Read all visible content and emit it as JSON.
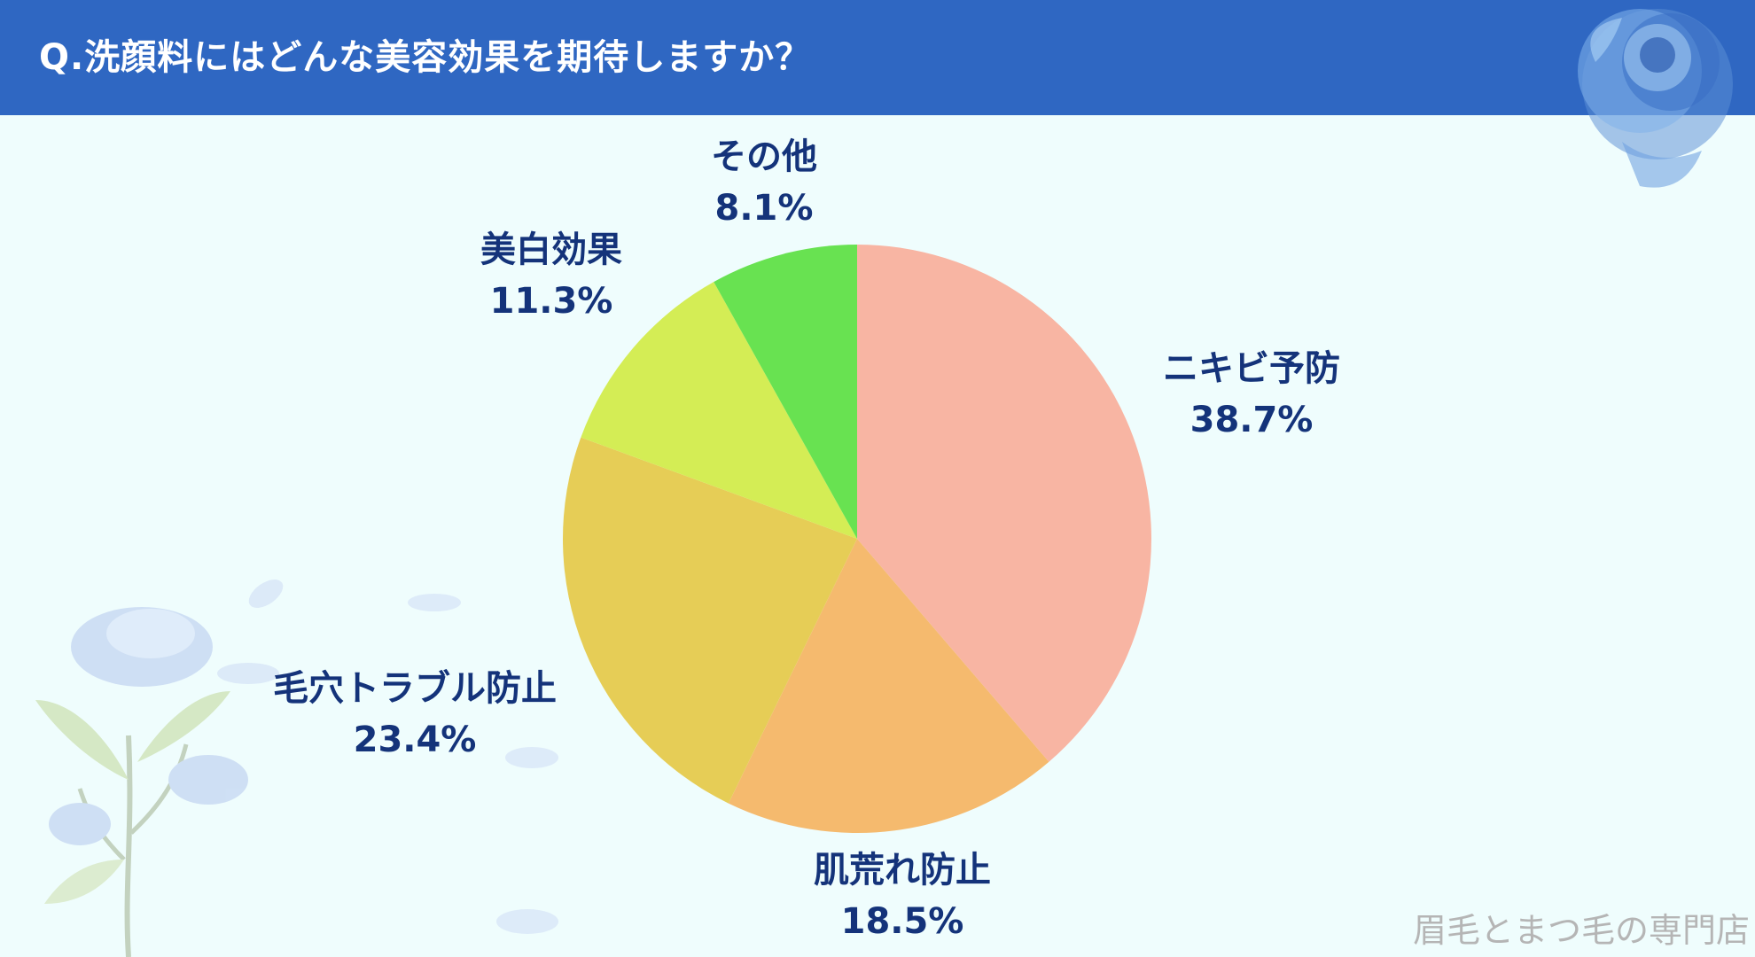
{
  "header": {
    "title": "Q.洗顔料にはどんな美容効果を期待しますか？",
    "background": "#2f67c2"
  },
  "watermark": "眉毛とまつ毛の専門店",
  "chart_data": {
    "type": "pie",
    "title": "Q.洗顔料にはどんな美容効果を期待しますか？",
    "start": "12 o'clock, clockwise",
    "slices": [
      {
        "label": "ニキビ予防",
        "value": 38.7,
        "display": "38.7%",
        "color": "#f8b5a3"
      },
      {
        "label": "肌荒れ防止",
        "value": 18.5,
        "display": "18.5%",
        "color": "#f5ba6e"
      },
      {
        "label": "毛穴トラブル防止",
        "value": 23.4,
        "display": "23.4%",
        "color": "#e6cd56"
      },
      {
        "label": "美白効果",
        "value": 11.3,
        "display": "11.3%",
        "color": "#d4ed55"
      },
      {
        "label": "その他",
        "value": 8.1,
        "display": "8.1%",
        "color": "#68e251"
      }
    ]
  }
}
